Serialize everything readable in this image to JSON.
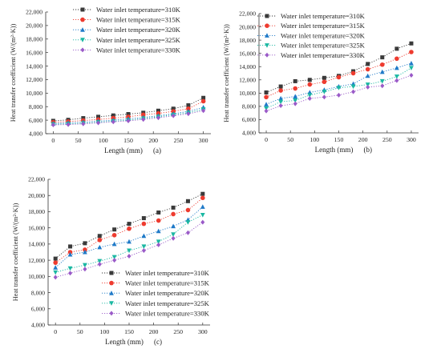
{
  "chart_data": [
    {
      "type": "line",
      "panel_label": "(a)",
      "xlabel": "Length (mm)",
      "ylabel": "Heat transfer coefficient (W/(m²·K))",
      "xlim": [
        -15,
        315
      ],
      "ylim": [
        4000,
        22000
      ],
      "x_ticks": [
        0,
        50,
        100,
        150,
        200,
        250,
        300
      ],
      "y_ticks": [
        4000,
        6000,
        8000,
        10000,
        12000,
        14000,
        16000,
        18000,
        20000,
        22000
      ],
      "y_tick_labels": [
        "4,000",
        "6,000",
        "8,000",
        "10,000",
        "12,000",
        "14,000",
        "16,000",
        "18,000",
        "20,000",
        "22,000"
      ],
      "legend_position": "top-right",
      "x": [
        0,
        30,
        60,
        90,
        120,
        150,
        180,
        210,
        240,
        270,
        300
      ],
      "series": [
        {
          "name": "Water inlet temperature=310K",
          "color": "#3a3a3a",
          "marker": "square",
          "values": [
            5900,
            6050,
            6300,
            6500,
            6700,
            6900,
            7100,
            7400,
            7700,
            8200,
            9300
          ]
        },
        {
          "name": "Water inlet temperature=315K",
          "color": "#ee3b2f",
          "marker": "circle",
          "values": [
            5700,
            5800,
            5950,
            6100,
            6300,
            6500,
            6800,
            7000,
            7300,
            7700,
            8800
          ]
        },
        {
          "name": "Water inlet temperature=320K",
          "color": "#1f7ac8",
          "marker": "triangle-up",
          "values": [
            5500,
            5600,
            5700,
            5850,
            6000,
            6200,
            6400,
            6650,
            6950,
            7300,
            7900
          ]
        },
        {
          "name": "Water inlet temperature=325K",
          "color": "#1ab8a2",
          "marker": "triangle-down",
          "values": [
            5400,
            5450,
            5550,
            5700,
            5850,
            6000,
            6250,
            6500,
            6800,
            7100,
            7600
          ]
        },
        {
          "name": "Water inlet temperature=330K",
          "color": "#9a5ac8",
          "marker": "diamond",
          "values": [
            5300,
            5350,
            5450,
            5600,
            5750,
            5900,
            6100,
            6350,
            6650,
            6950,
            7400
          ]
        }
      ]
    },
    {
      "type": "line",
      "panel_label": "(b)",
      "xlabel": "Length (mm)",
      "ylabel": "Heat transfer coefficient (W/(m²·K))",
      "xlim": [
        -15,
        315
      ],
      "ylim": [
        4000,
        22000
      ],
      "x_ticks": [
        0,
        50,
        100,
        150,
        200,
        250,
        300
      ],
      "y_ticks": [
        4000,
        6000,
        8000,
        10000,
        12000,
        14000,
        16000,
        18000,
        20000,
        22000
      ],
      "y_tick_labels": [
        "4,000",
        "6,000",
        "8,000",
        "10,000",
        "12,000",
        "14,000",
        "16,000",
        "18,000",
        "20,000",
        "22,000"
      ],
      "legend_position": "top-right",
      "x": [
        0,
        30,
        60,
        90,
        120,
        150,
        180,
        210,
        240,
        270,
        300
      ],
      "series": [
        {
          "name": "Water inlet temperature=310K",
          "color": "#3a3a3a",
          "marker": "square",
          "values": [
            10100,
            11000,
            11800,
            12000,
            12300,
            12600,
            13300,
            14400,
            15400,
            16700,
            17500
          ]
        },
        {
          "name": "Water inlet temperature=315K",
          "color": "#ee3b2f",
          "marker": "circle",
          "values": [
            9400,
            10400,
            10700,
            11300,
            11700,
            12400,
            13000,
            13600,
            14300,
            15200,
            16200
          ]
        },
        {
          "name": "Water inlet temperature=320K",
          "color": "#1f7ac8",
          "marker": "triangle-up",
          "values": [
            8300,
            9200,
            9500,
            10100,
            10500,
            11000,
            11400,
            12600,
            13200,
            13800,
            14500
          ]
        },
        {
          "name": "Water inlet temperature=325K",
          "color": "#1ab8a2",
          "marker": "triangle-down",
          "values": [
            7700,
            8700,
            8900,
            9700,
            10200,
            10800,
            11000,
            11300,
            11800,
            12500,
            13800
          ]
        },
        {
          "name": "Water inlet temperature=330K",
          "color": "#9a5ac8",
          "marker": "diamond",
          "values": [
            7300,
            8100,
            8400,
            9200,
            9400,
            9700,
            10200,
            10900,
            11100,
            11900,
            12700
          ]
        }
      ]
    },
    {
      "type": "line",
      "panel_label": "(c)",
      "xlabel": "Length (mm)",
      "ylabel": "Heat transfer coefficient (W/(m²·K))",
      "xlim": [
        -15,
        315
      ],
      "ylim": [
        4000,
        22000
      ],
      "x_ticks": [
        0,
        50,
        100,
        150,
        200,
        250,
        300
      ],
      "y_ticks": [
        4000,
        6000,
        8000,
        10000,
        12000,
        14000,
        16000,
        18000,
        20000,
        22000
      ],
      "y_tick_labels": [
        "4,000",
        "6,000",
        "8,000",
        "10,000",
        "12,000",
        "14,000",
        "16,000",
        "18,000",
        "20,000",
        "22,000"
      ],
      "legend_position": "bottom-right",
      "x": [
        0,
        30,
        60,
        90,
        120,
        150,
        180,
        210,
        240,
        270,
        300
      ],
      "series": [
        {
          "name": "Water inlet temperature=310K",
          "color": "#3a3a3a",
          "marker": "square",
          "values": [
            12200,
            13700,
            14100,
            15000,
            15800,
            16500,
            17200,
            17900,
            18500,
            19300,
            20200
          ]
        },
        {
          "name": "Water inlet temperature=315K",
          "color": "#ee3b2f",
          "marker": "circle",
          "values": [
            11700,
            13000,
            13300,
            14500,
            15100,
            15900,
            16500,
            16900,
            17700,
            18200,
            19700
          ]
        },
        {
          "name": "Water inlet temperature=320K",
          "color": "#1f7ac8",
          "marker": "triangle-up",
          "values": [
            11100,
            12700,
            13000,
            13600,
            14000,
            14300,
            15000,
            15600,
            16200,
            17000,
            18600
          ]
        },
        {
          "name": "Water inlet temperature=325K",
          "color": "#1ab8a2",
          "marker": "triangle-down",
          "values": [
            10500,
            11000,
            11400,
            11900,
            12400,
            13200,
            13700,
            14300,
            15200,
            16700,
            17600
          ]
        },
        {
          "name": "Water inlet temperature=330K",
          "color": "#9a5ac8",
          "marker": "diamond",
          "values": [
            9900,
            10400,
            10900,
            11500,
            12000,
            12500,
            13200,
            13900,
            14700,
            15400,
            16700
          ]
        }
      ]
    }
  ]
}
